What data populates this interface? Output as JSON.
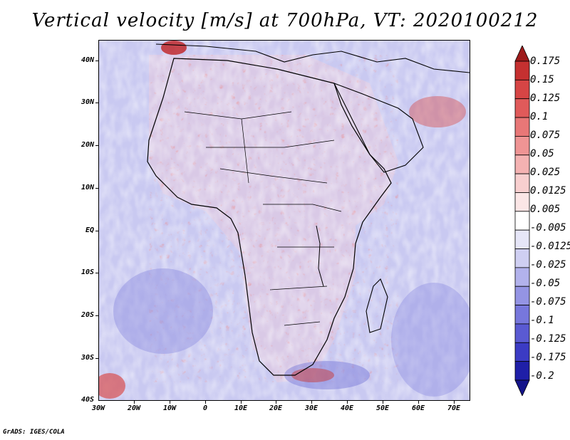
{
  "title": "Vertical velocity [m/s] at 700hPa, VT: 2020100212",
  "map": {
    "lat_labels": [
      "40N",
      "30N",
      "20N",
      "10N",
      "EQ",
      "10S",
      "20S",
      "30S",
      "40S"
    ],
    "lon_labels": [
      "30W",
      "20W",
      "10W",
      "0",
      "10E",
      "20E",
      "30E",
      "40E",
      "50E",
      "60E",
      "70E"
    ],
    "lat_range": [
      -40,
      45
    ],
    "lon_range": [
      -30,
      75
    ]
  },
  "colorbar": {
    "labels": [
      "0.175",
      "0.15",
      "0.125",
      "0.1",
      "0.075",
      "0.05",
      "0.025",
      "0.0125",
      "0.005",
      "-0.005",
      "-0.0125",
      "-0.025",
      "-0.05",
      "-0.075",
      "-0.1",
      "-0.125",
      "-0.175",
      "-0.2"
    ],
    "colors": [
      "#9e1b1b",
      "#c53030",
      "#d64545",
      "#e05a5a",
      "#e87777",
      "#ef9494",
      "#f4b2b2",
      "#f8cfcf",
      "#fbe6e6",
      "#ffffff",
      "#e6e6f8",
      "#cfcff2",
      "#b2b2ec",
      "#9494e4",
      "#7777dc",
      "#5a5ad2",
      "#3b3bc4",
      "#1f1fa8",
      "#14148a"
    ]
  },
  "footer": "GrADS: IGES/COLA"
}
